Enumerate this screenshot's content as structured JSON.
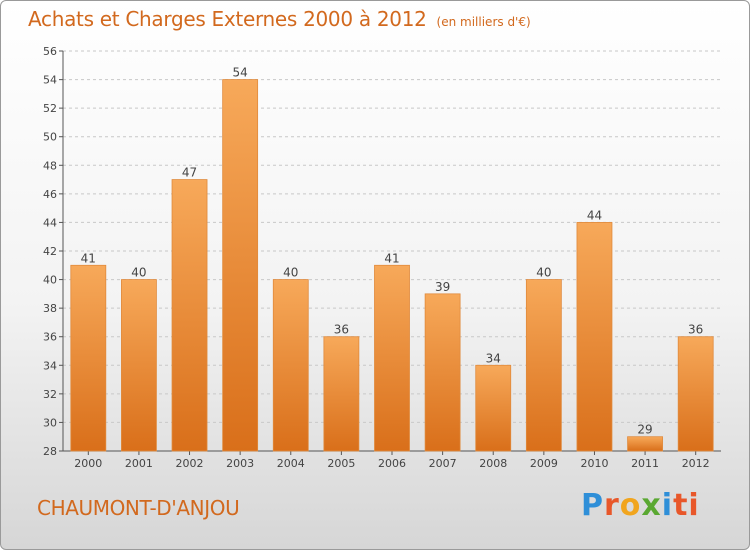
{
  "header": {
    "title": "Achats et Charges Externes 2000 à 2012",
    "unit": "(en milliers d'€)"
  },
  "footer": {
    "commune": "CHAUMONT-D'ANJOU",
    "logo": "Proxiti",
    "logo_letters": [
      "P",
      "r",
      "o",
      "x",
      "i",
      "ti"
    ]
  },
  "colors": {
    "accent": "#d2691e",
    "bar_light": "#f7a95a",
    "bar_dark": "#d96f1a",
    "grid": "#c8c8c8"
  },
  "chart_data": {
    "type": "bar",
    "categories": [
      "2000",
      "2001",
      "2002",
      "2003",
      "2004",
      "2005",
      "2006",
      "2007",
      "2008",
      "2009",
      "2010",
      "2011",
      "2012"
    ],
    "values": [
      41,
      40,
      47,
      54,
      40,
      36,
      41,
      39,
      34,
      40,
      44,
      29,
      36
    ],
    "ylim": [
      28,
      56
    ],
    "yticks": [
      28,
      30,
      32,
      34,
      36,
      38,
      40,
      42,
      44,
      46,
      48,
      50,
      52,
      54,
      56
    ],
    "grid": true,
    "data_labels": true
  }
}
